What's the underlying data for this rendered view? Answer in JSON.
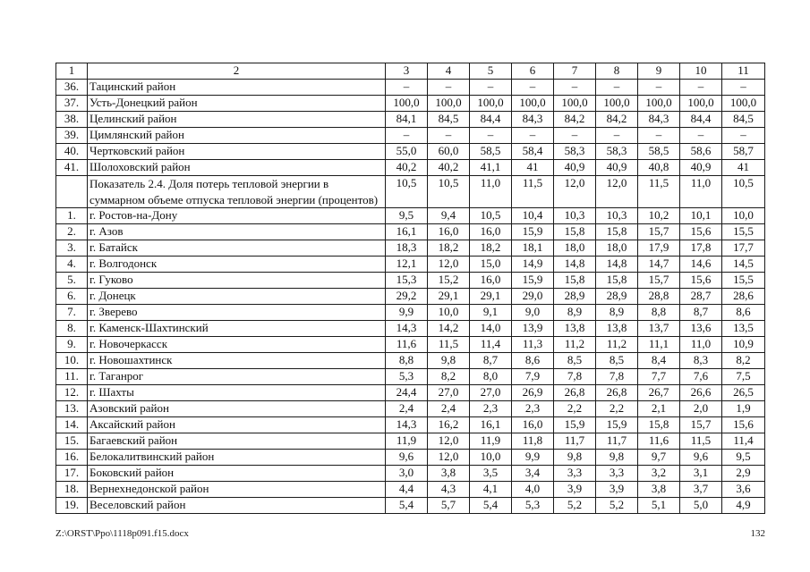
{
  "footer": {
    "file_path": "Z:\\ORST\\Ppo\\1118p091.f15.docx",
    "page_number": "132"
  },
  "table": {
    "columns": [
      "1",
      "2",
      "3",
      "4",
      "5",
      "6",
      "7",
      "8",
      "9",
      "10",
      "11"
    ],
    "rows": [
      {
        "num": "36.",
        "name": "Тацинский район",
        "tall": false,
        "values": [
          "–",
          "–",
          "–",
          "–",
          "–",
          "–",
          "–",
          "–",
          "–"
        ]
      },
      {
        "num": "37.",
        "name": "Усть-Донецкий район",
        "tall": false,
        "values": [
          "100,0",
          "100,0",
          "100,0",
          "100,0",
          "100,0",
          "100,0",
          "100,0",
          "100,0",
          "100,0"
        ]
      },
      {
        "num": "38.",
        "name": "Целинский район",
        "tall": false,
        "values": [
          "84,1",
          "84,5",
          "84,4",
          "84,3",
          "84,2",
          "84,2",
          "84,3",
          "84,4",
          "84,5"
        ]
      },
      {
        "num": "39.",
        "name": "Цимлянский район",
        "tall": false,
        "values": [
          "–",
          "–",
          "–",
          "–",
          "–",
          "–",
          "–",
          "–",
          "–"
        ]
      },
      {
        "num": "40.",
        "name": "Чертковский район",
        "tall": false,
        "values": [
          "55,0",
          "60,0",
          "58,5",
          "58,4",
          "58,3",
          "58,3",
          "58,5",
          "58,6",
          "58,7"
        ]
      },
      {
        "num": "41.",
        "name": "Шолоховский район",
        "tall": false,
        "values": [
          "40,2",
          "40,2",
          "41,1",
          "41",
          "40,9",
          "40,9",
          "40,8",
          "40,9",
          "41"
        ]
      },
      {
        "num": "",
        "name": "Показатель 2.4. Доля потерь тепловой энергии в суммарном объеме отпуска тепловой энергии (процентов)",
        "tall": true,
        "values": [
          "10,5",
          "10,5",
          "11,0",
          "11,5",
          "12,0",
          "12,0",
          "11,5",
          "11,0",
          "10,5"
        ]
      },
      {
        "num": "1.",
        "name": "г. Ростов-на-Дону",
        "tall": false,
        "values": [
          "9,5",
          "9,4",
          "10,5",
          "10,4",
          "10,3",
          "10,3",
          "10,2",
          "10,1",
          "10,0"
        ]
      },
      {
        "num": "2.",
        "name": "г. Азов",
        "tall": false,
        "values": [
          "16,1",
          "16,0",
          "16,0",
          "15,9",
          "15,8",
          "15,8",
          "15,7",
          "15,6",
          "15,5"
        ]
      },
      {
        "num": "3.",
        "name": "г. Батайск",
        "tall": false,
        "values": [
          "18,3",
          "18,2",
          "18,2",
          "18,1",
          "18,0",
          "18,0",
          "17,9",
          "17,8",
          "17,7"
        ]
      },
      {
        "num": "4.",
        "name": "г. Волгодонск",
        "tall": false,
        "values": [
          "12,1",
          "12,0",
          "15,0",
          "14,9",
          "14,8",
          "14,8",
          "14,7",
          "14,6",
          "14,5"
        ]
      },
      {
        "num": "5.",
        "name": "г. Гуково",
        "tall": false,
        "values": [
          "15,3",
          "15,2",
          "16,0",
          "15,9",
          "15,8",
          "15,8",
          "15,7",
          "15,6",
          "15,5"
        ]
      },
      {
        "num": "6.",
        "name": "г. Донецк",
        "tall": false,
        "values": [
          "29,2",
          "29,1",
          "29,1",
          "29,0",
          "28,9",
          "28,9",
          "28,8",
          "28,7",
          "28,6"
        ]
      },
      {
        "num": "7.",
        "name": "г. Зверево",
        "tall": false,
        "values": [
          "9,9",
          "10,0",
          "9,1",
          "9,0",
          "8,9",
          "8,9",
          "8,8",
          "8,7",
          "8,6"
        ]
      },
      {
        "num": "8.",
        "name": "г. Каменск-Шахтинский",
        "tall": false,
        "values": [
          "14,3",
          "14,2",
          "14,0",
          "13,9",
          "13,8",
          "13,8",
          "13,7",
          "13,6",
          "13,5"
        ]
      },
      {
        "num": "9.",
        "name": "г. Новочеркасск",
        "tall": false,
        "values": [
          "11,6",
          "11,5",
          "11,4",
          "11,3",
          "11,2",
          "11,2",
          "11,1",
          "11,0",
          "10,9"
        ]
      },
      {
        "num": "10.",
        "name": "г. Новошахтинск",
        "tall": false,
        "values": [
          "8,8",
          "9,8",
          "8,7",
          "8,6",
          "8,5",
          "8,5",
          "8,4",
          "8,3",
          "8,2"
        ]
      },
      {
        "num": "11.",
        "name": "г. Таганрог",
        "tall": false,
        "values": [
          "5,3",
          "8,2",
          "8,0",
          "7,9",
          "7,8",
          "7,8",
          "7,7",
          "7,6",
          "7,5"
        ]
      },
      {
        "num": "12.",
        "name": "г. Шахты",
        "tall": false,
        "values": [
          "24,4",
          "27,0",
          "27,0",
          "26,9",
          "26,8",
          "26,8",
          "26,7",
          "26,6",
          "26,5"
        ]
      },
      {
        "num": "13.",
        "name": "Азовский район",
        "tall": false,
        "values": [
          "2,4",
          "2,4",
          "2,3",
          "2,3",
          "2,2",
          "2,2",
          "2,1",
          "2,0",
          "1,9"
        ]
      },
      {
        "num": "14.",
        "name": "Аксайский район",
        "tall": false,
        "values": [
          "14,3",
          "16,2",
          "16,1",
          "16,0",
          "15,9",
          "15,9",
          "15,8",
          "15,7",
          "15,6"
        ]
      },
      {
        "num": "15.",
        "name": "Багаевский район",
        "tall": false,
        "values": [
          "11,9",
          "12,0",
          "11,9",
          "11,8",
          "11,7",
          "11,7",
          "11,6",
          "11,5",
          "11,4"
        ]
      },
      {
        "num": "16.",
        "name": "Белокалитвинский район",
        "tall": false,
        "values": [
          "9,6",
          "12,0",
          "10,0",
          "9,9",
          "9,8",
          "9,8",
          "9,7",
          "9,6",
          "9,5"
        ]
      },
      {
        "num": "17.",
        "name": "Боковский район",
        "tall": false,
        "values": [
          "3,0",
          "3,8",
          "3,5",
          "3,4",
          "3,3",
          "3,3",
          "3,2",
          "3,1",
          "2,9"
        ]
      },
      {
        "num": "18.",
        "name": "Вернехнедонской район",
        "tall": false,
        "values": [
          "4,4",
          "4,3",
          "4,1",
          "4,0",
          "3,9",
          "3,9",
          "3,8",
          "3,7",
          "3,6"
        ]
      },
      {
        "num": "19.",
        "name": "Веселовский район",
        "tall": false,
        "values": [
          "5,4",
          "5,7",
          "5,4",
          "5,3",
          "5,2",
          "5,2",
          "5,1",
          "5,0",
          "4,9"
        ]
      }
    ]
  }
}
